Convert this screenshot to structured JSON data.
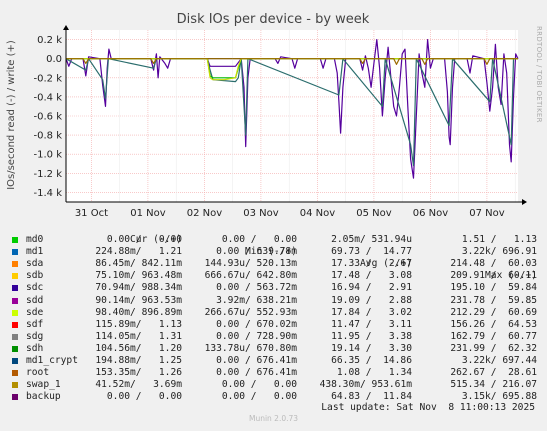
{
  "chart_data": {
    "type": "line",
    "title": "Disk IOs per device - by week",
    "ylabel": "IOs/second read (-) / write (+)",
    "side_label": "RRDTOOL / TOBI OETIKER",
    "ylim": [
      -1.5,
      0.3
    ],
    "y_ticks": [
      {
        "v": 0.2,
        "label": "0.2 k"
      },
      {
        "v": 0.0,
        "label": "0.0"
      },
      {
        "v": -0.2,
        "label": "-0.2 k"
      },
      {
        "v": -0.4,
        "label": "-0.4 k"
      },
      {
        "v": -0.6,
        "label": "-0.6 k"
      },
      {
        "v": -0.8,
        "label": "-0.8 k"
      },
      {
        "v": -1.0,
        "label": "-1.0 k"
      },
      {
        "v": -1.2,
        "label": "-1.2 k"
      },
      {
        "v": -1.4,
        "label": "-1.4 k"
      }
    ],
    "x_range": [
      0,
      8
    ],
    "x_ticks": [
      {
        "v": 0.45,
        "label": "31 Oct"
      },
      {
        "v": 1.45,
        "label": "01 Nov"
      },
      {
        "v": 2.45,
        "label": "02 Nov"
      },
      {
        "v": 3.45,
        "label": "03 Nov"
      },
      {
        "v": 4.45,
        "label": "04 Nov"
      },
      {
        "v": 5.45,
        "label": "05 Nov"
      },
      {
        "v": 6.45,
        "label": "06 Nov"
      },
      {
        "v": 7.45,
        "label": "07 Nov"
      }
    ],
    "series": [
      {
        "name": "backup",
        "color": "#55009d",
        "points": [
          [
            0,
            0
          ],
          [
            0.05,
            -0.08
          ],
          [
            0.1,
            0
          ],
          [
            0.3,
            0
          ],
          [
            0.35,
            -0.18
          ],
          [
            0.4,
            0.02
          ],
          [
            0.6,
            0
          ],
          [
            0.65,
            -0.28
          ],
          [
            0.7,
            -0.5
          ],
          [
            0.73,
            -0.1
          ],
          [
            0.76,
            0.1
          ],
          [
            0.8,
            0
          ],
          [
            1.5,
            0
          ],
          [
            1.55,
            -0.12
          ],
          [
            1.6,
            0.05
          ],
          [
            1.63,
            -0.2
          ],
          [
            1.66,
            0.02
          ],
          [
            1.75,
            -0.05
          ],
          [
            1.8,
            -0.1
          ],
          [
            1.85,
            0
          ],
          [
            2.4,
            0
          ],
          [
            2.5,
            0
          ],
          [
            2.55,
            -0.08
          ],
          [
            3.0,
            -0.08
          ],
          [
            3.1,
            0
          ],
          [
            3.15,
            -0.3
          ],
          [
            3.18,
            -0.92
          ],
          [
            3.22,
            -0.2
          ],
          [
            3.26,
            0
          ],
          [
            3.7,
            0
          ],
          [
            3.75,
            -0.05
          ],
          [
            3.8,
            0.02
          ],
          [
            4.0,
            0
          ],
          [
            4.05,
            -0.1
          ],
          [
            4.1,
            0
          ],
          [
            4.5,
            0
          ],
          [
            4.55,
            -0.1
          ],
          [
            4.6,
            0
          ],
          [
            4.75,
            0
          ],
          [
            4.8,
            -0.15
          ],
          [
            4.83,
            -0.45
          ],
          [
            4.86,
            -0.78
          ],
          [
            4.9,
            -0.3
          ],
          [
            4.95,
            0
          ],
          [
            5.2,
            0
          ],
          [
            5.25,
            -0.12
          ],
          [
            5.3,
            0.03
          ],
          [
            5.35,
            -0.1
          ],
          [
            5.4,
            -0.3
          ],
          [
            5.45,
            -0.05
          ],
          [
            5.5,
            0.2
          ],
          [
            5.55,
            -0.1
          ],
          [
            5.6,
            -0.6
          ],
          [
            5.65,
            -0.2
          ],
          [
            5.7,
            0.12
          ],
          [
            5.75,
            -0.2
          ],
          [
            5.8,
            -0.5
          ],
          [
            5.85,
            -0.6
          ],
          [
            5.9,
            -0.3
          ],
          [
            5.95,
            0.05
          ],
          [
            6.0,
            0.1
          ],
          [
            6.05,
            -0.5
          ],
          [
            6.1,
            -1.05
          ],
          [
            6.15,
            -1.25
          ],
          [
            6.2,
            -0.6
          ],
          [
            6.25,
            0.05
          ],
          [
            6.3,
            -0.15
          ],
          [
            6.35,
            -0.3
          ],
          [
            6.4,
            0.2
          ],
          [
            6.45,
            -0.1
          ],
          [
            6.5,
            0
          ],
          [
            6.7,
            0
          ],
          [
            6.75,
            -0.35
          ],
          [
            6.78,
            -0.82
          ],
          [
            6.8,
            -0.9
          ],
          [
            6.84,
            -0.3
          ],
          [
            6.88,
            0
          ],
          [
            7.1,
            0
          ],
          [
            7.15,
            -0.15
          ],
          [
            7.2,
            0.03
          ],
          [
            7.4,
            0
          ],
          [
            7.45,
            -0.25
          ],
          [
            7.5,
            -0.55
          ],
          [
            7.55,
            -0.3
          ],
          [
            7.6,
            0.15
          ],
          [
            7.65,
            -0.3
          ],
          [
            7.7,
            -0.48
          ],
          [
            7.75,
            0.05
          ],
          [
            7.8,
            -0.15
          ],
          [
            7.85,
            -0.9
          ],
          [
            7.88,
            -1.08
          ],
          [
            7.92,
            -0.4
          ],
          [
            7.96,
            0.05
          ],
          [
            8.0,
            0
          ]
        ]
      },
      {
        "name": "md1_crypt",
        "color": "#2b6d6d",
        "points": [
          [
            0,
            0
          ],
          [
            0.35,
            -0.12
          ],
          [
            0.4,
            0
          ],
          [
            0.65,
            -0.22
          ],
          [
            0.7,
            -0.42
          ],
          [
            0.75,
            0
          ],
          [
            1.55,
            -0.1
          ],
          [
            1.6,
            0
          ],
          [
            2.5,
            0
          ],
          [
            2.55,
            -0.12
          ],
          [
            2.6,
            -0.22
          ],
          [
            3.0,
            -0.24
          ],
          [
            3.05,
            -0.2
          ],
          [
            3.1,
            0
          ],
          [
            3.18,
            -0.8
          ],
          [
            3.22,
            0
          ],
          [
            4.83,
            -0.38
          ],
          [
            4.9,
            0
          ],
          [
            5.6,
            -0.5
          ],
          [
            5.65,
            0
          ],
          [
            6.1,
            -0.9
          ],
          [
            6.15,
            -1.12
          ],
          [
            6.2,
            0
          ],
          [
            6.78,
            -0.7
          ],
          [
            6.84,
            0
          ],
          [
            7.5,
            -0.45
          ],
          [
            7.55,
            0
          ],
          [
            7.88,
            -0.9
          ],
          [
            7.92,
            0
          ],
          [
            8.0,
            0
          ]
        ]
      },
      {
        "name": "sdc",
        "color": "#00b800",
        "points": [
          [
            0,
            0
          ],
          [
            2.5,
            0
          ],
          [
            2.55,
            -0.18
          ],
          [
            2.6,
            -0.2
          ],
          [
            3.0,
            -0.2
          ],
          [
            3.05,
            -0.1
          ],
          [
            3.1,
            0
          ],
          [
            8.0,
            0
          ]
        ]
      },
      {
        "name": "sde",
        "color": "#ccdd00",
        "points": [
          [
            0,
            0
          ],
          [
            2.5,
            0
          ],
          [
            2.55,
            -0.2
          ],
          [
            2.6,
            -0.22
          ],
          [
            2.8,
            -0.22
          ],
          [
            3.0,
            -0.2
          ],
          [
            3.05,
            -0.08
          ],
          [
            3.1,
            0
          ],
          [
            8.0,
            0
          ]
        ]
      },
      {
        "name": "root",
        "color": "#9c6b00",
        "points": [
          [
            0,
            0
          ],
          [
            0.3,
            0
          ],
          [
            0.35,
            -0.05
          ],
          [
            0.4,
            0
          ],
          [
            1.5,
            0
          ],
          [
            1.55,
            -0.05
          ],
          [
            1.6,
            0
          ],
          [
            5.2,
            0
          ],
          [
            5.25,
            -0.05
          ],
          [
            5.3,
            0
          ],
          [
            5.8,
            0
          ],
          [
            5.85,
            -0.06
          ],
          [
            5.9,
            0
          ],
          [
            6.3,
            0
          ],
          [
            6.35,
            -0.06
          ],
          [
            6.4,
            0
          ],
          [
            7.4,
            0
          ],
          [
            7.45,
            -0.06
          ],
          [
            7.5,
            0
          ],
          [
            8.0,
            0
          ]
        ]
      }
    ]
  },
  "legend": {
    "headers": {
      "cur": "Cur (-/+)",
      "min": "Min (-/+)",
      "avg": "Avg (-/+)",
      "max": "Max (-/+)"
    },
    "rows": [
      {
        "name": "md0",
        "color": "#00cc00",
        "cur": "0.00 /   0.00",
        "min": "0.00 /   0.00",
        "avg": "2.05m/ 531.94u",
        "max": "1.51 /   1.13"
      },
      {
        "name": "md1",
        "color": "#0066b3",
        "cur": "224.88m/   1.21",
        "min": "0.00 / 639.78m",
        "avg": "69.73 /  14.77",
        "max": "3.22k/ 696.91"
      },
      {
        "name": "sda",
        "color": "#ff8000",
        "cur": "86.45m/ 842.11m",
        "min": "144.93u/ 520.13m",
        "avg": "17.33 /   2.67",
        "max": "214.48 /  60.03"
      },
      {
        "name": "sdb",
        "color": "#ffcc00",
        "cur": "75.10m/ 963.48m",
        "min": "666.67u/ 642.80m",
        "avg": "17.48 /   3.08",
        "max": "209.91 /  60.11"
      },
      {
        "name": "sdc",
        "color": "#330099",
        "cur": "70.94m/ 988.34m",
        "min": "0.00 / 563.72m",
        "avg": "16.94 /   2.91",
        "max": "195.10 /  59.84"
      },
      {
        "name": "sdd",
        "color": "#990099",
        "cur": "90.14m/ 963.53m",
        "min": "3.92m/ 638.21m",
        "avg": "19.09 /   2.88",
        "max": "231.78 /  59.85"
      },
      {
        "name": "sde",
        "color": "#ccff00",
        "cur": "98.40m/ 896.89m",
        "min": "266.67u/ 552.93m",
        "avg": "17.84 /   3.02",
        "max": "212.29 /  60.69"
      },
      {
        "name": "sdf",
        "color": "#ff0000",
        "cur": "115.89m/   1.13",
        "min": "0.00 / 670.02m",
        "avg": "11.47 /   3.11",
        "max": "156.26 /  64.53"
      },
      {
        "name": "sdg",
        "color": "#808080",
        "cur": "114.05m/   1.31",
        "min": "0.00 / 728.90m",
        "avg": "11.95 /   3.38",
        "max": "162.79 /  60.77"
      },
      {
        "name": "sdh",
        "color": "#008f00",
        "cur": "104.56m/   1.20",
        "min": "133.78u/ 670.80m",
        "avg": "19.14 /   3.30",
        "max": "231.99 /  62.32"
      },
      {
        "name": "md1_crypt",
        "color": "#00487d",
        "cur": "194.88m/   1.25",
        "min": "0.00 / 676.41m",
        "avg": "66.35 /  14.86",
        "max": "3.22k/ 697.44"
      },
      {
        "name": "root",
        "color": "#b35a00",
        "cur": "153.35m/   1.26",
        "min": "0.00 / 676.41m",
        "avg": "1.08 /   1.34",
        "max": "262.67 /  28.61"
      },
      {
        "name": "swap_1",
        "color": "#b38f00",
        "cur": "41.52m/   3.69m",
        "min": "0.00 /   0.00",
        "avg": "438.30m/ 953.61m",
        "max": "515.34 / 216.07"
      },
      {
        "name": "backup",
        "color": "#6b006b",
        "cur": "0.00 /   0.00",
        "min": "0.00 /   0.00",
        "avg": "64.83 /  11.84",
        "max": "3.15k/ 695.88"
      }
    ],
    "last_update": "Last update: Sat Nov  8 11:00:13 2025",
    "footer": "Munin 2.0.73"
  }
}
